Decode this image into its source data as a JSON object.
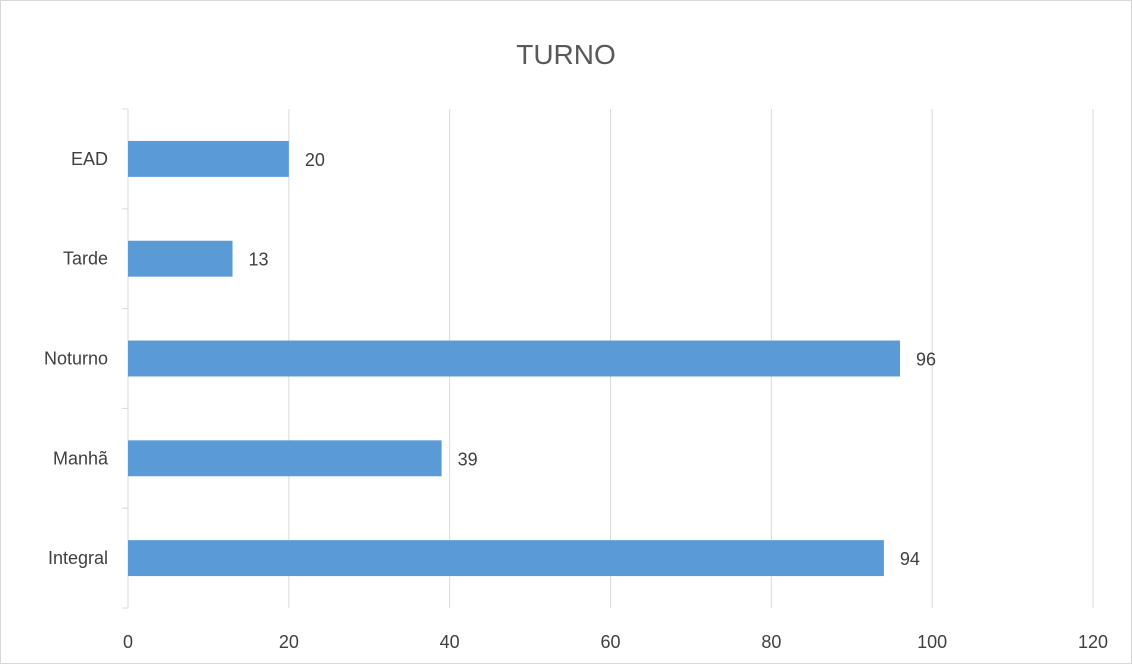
{
  "chart_data": {
    "type": "bar",
    "orientation": "horizontal",
    "title": "TURNO",
    "categories": [
      "EAD",
      "Tarde",
      "Noturno",
      "Manhã",
      "Integral"
    ],
    "values": [
      20,
      13,
      96,
      39,
      94
    ],
    "xlim": [
      0,
      120
    ],
    "x_ticks": [
      0,
      20,
      40,
      60,
      80,
      100,
      120
    ],
    "grid": true,
    "data_labels": true,
    "bar_color": "#5b9bd5",
    "grid_color": "#d9d9d9",
    "text_color": "#404040"
  }
}
